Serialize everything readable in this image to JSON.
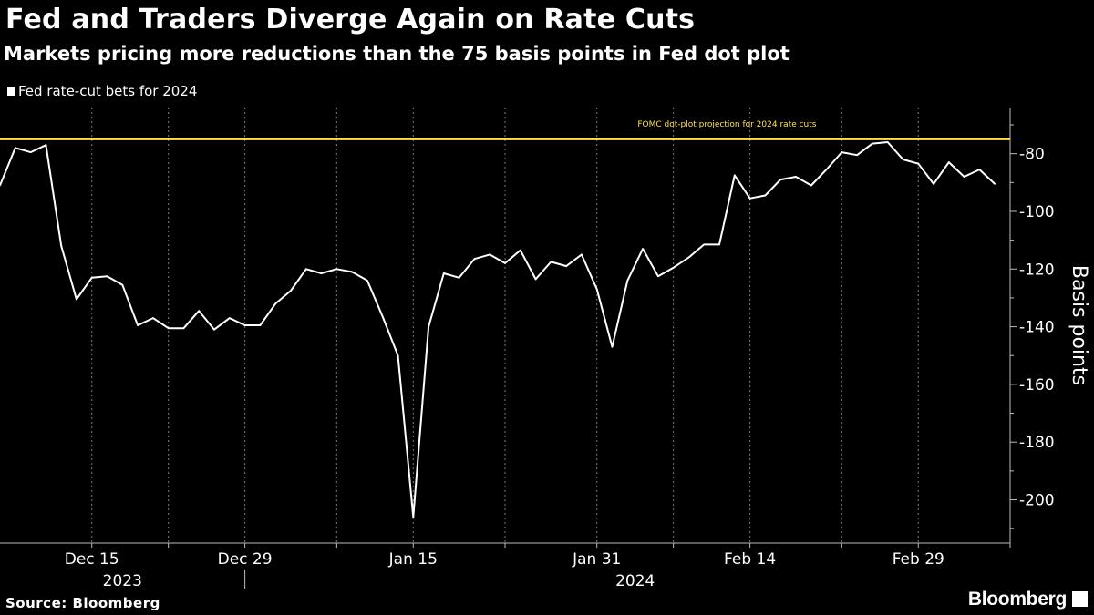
{
  "chart_data": {
    "type": "line",
    "title": "Fed and Traders Diverge Again on Rate Cuts",
    "subtitle": "Markets pricing more reductions than the 75 basis points in Fed dot plot",
    "ylabel": "Basis points",
    "ylim": [
      -215,
      -64
    ],
    "yticks": [
      -80,
      -100,
      -120,
      -140,
      -160,
      -180,
      -200
    ],
    "ytick_labels": [
      "-80",
      "-100",
      "-120",
      "-140",
      "-160",
      "-180",
      "-200"
    ],
    "xlim": [
      0,
      66
    ],
    "xticks": [
      {
        "label": "Dec 15",
        "x": 6
      },
      {
        "label": "Dec 29",
        "x": 16
      },
      {
        "label": "Jan 15",
        "x": 27
      },
      {
        "label": "Jan 31",
        "x": 39
      },
      {
        "label": "Feb 14",
        "x": 49
      },
      {
        "label": "Feb 29",
        "x": 60
      }
    ],
    "minor_xticks": [
      11,
      22,
      33,
      44,
      55,
      66
    ],
    "year_labels": [
      {
        "label": "2023",
        "x": 8
      },
      {
        "label": "2024",
        "x": 41.5
      }
    ],
    "year_divider_x": 16,
    "grid": true,
    "reference_line": {
      "value": -75,
      "label": "FOMC dot-plot projection for 2024 rate cuts",
      "color": "#ffe14d"
    },
    "series": [
      {
        "name": "Fed rate-cut bets for 2024",
        "color": "#ffffff",
        "x": [
          0,
          1,
          2,
          3,
          4,
          5,
          6,
          7,
          8,
          9,
          10,
          11,
          12,
          13,
          14,
          15,
          16,
          17,
          18,
          19,
          20,
          21,
          22,
          23,
          24,
          25,
          26,
          27,
          28,
          29,
          30,
          31,
          32,
          33,
          34,
          35,
          36,
          37,
          38,
          39,
          40,
          41,
          42,
          43,
          44,
          45,
          46,
          47,
          48,
          49,
          50,
          51,
          52,
          53,
          54,
          55,
          56,
          57,
          58,
          59,
          60,
          61,
          62,
          63,
          64,
          65
        ],
        "values": [
          -91,
          -78,
          -79.5,
          -77,
          -112,
          -130.5,
          -123,
          -122.5,
          -125.5,
          -139.5,
          -137,
          -140.5,
          -140.5,
          -134.5,
          -141,
          -137,
          -139.5,
          -139.5,
          -132,
          -127.5,
          -120,
          -121.5,
          -120,
          -121,
          -124,
          -136.5,
          -150,
          -206,
          -140,
          -121.5,
          -123,
          -116.5,
          -115,
          -118,
          -113.5,
          -123.5,
          -117.5,
          -119,
          -115,
          -127,
          -147,
          -124,
          -113,
          -122.5,
          -119.5,
          -116,
          -111.5,
          -111.5,
          -87.5,
          -95.5,
          -94.5,
          -89,
          -88,
          -91,
          -85.5,
          -79.5,
          -80.5,
          -76.5,
          -76,
          -82,
          -83.5,
          -90.5,
          -83,
          -88,
          -85.5,
          -90.5
        ]
      }
    ]
  },
  "legend": {
    "label": "Fed rate-cut bets for 2024"
  },
  "footer": {
    "source": "Source: Bloomberg",
    "brand": "Bloomberg"
  },
  "colors": {
    "background": "#000000",
    "line": "#ffffff",
    "reference": "#ffe14d",
    "grid": "#7a7a7a"
  }
}
